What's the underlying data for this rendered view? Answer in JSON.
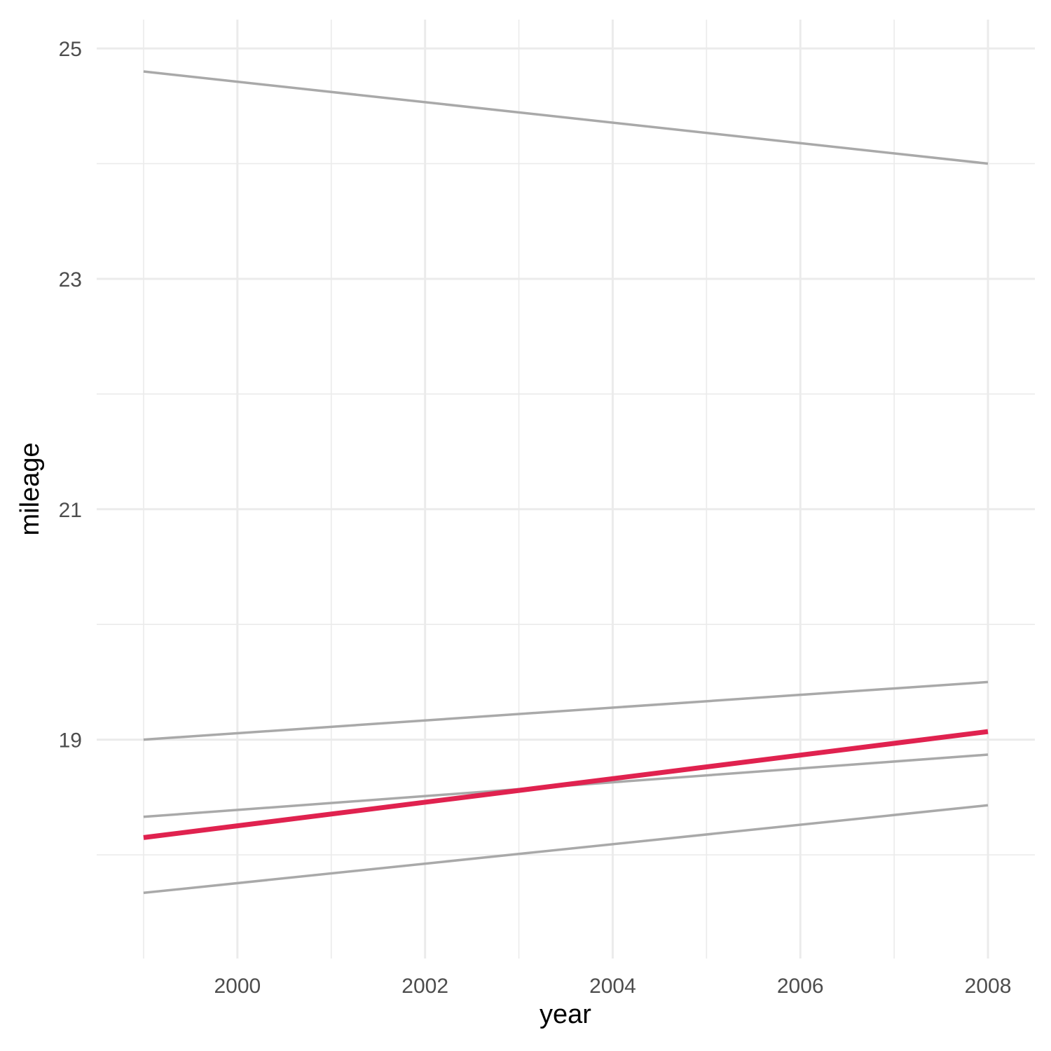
{
  "chart_data": {
    "type": "line",
    "title": "",
    "xlabel": "year",
    "ylabel": "mileage",
    "xlim": [
      1998.5,
      2008.5
    ],
    "ylim": [
      17.1,
      25.25
    ],
    "x_ticks": [
      2000,
      2002,
      2004,
      2006,
      2008
    ],
    "x_ticks_minor": [
      1999,
      2001,
      2003,
      2005,
      2007
    ],
    "y_ticks": [
      19,
      21,
      23,
      25
    ],
    "y_ticks_minor": [
      18,
      20,
      22,
      24
    ],
    "grid": true,
    "legend": "none",
    "colors": {
      "highlight": "#e0224f",
      "background_series": "#a9a9a9",
      "grid": "#ebebeb"
    },
    "series": [
      {
        "x": [
          1999,
          2008
        ],
        "y": [
          24.8,
          24.0
        ],
        "highlight": false
      },
      {
        "x": [
          1999,
          2008
        ],
        "y": [
          19.0,
          19.5
        ],
        "highlight": false
      },
      {
        "x": [
          1999,
          2008
        ],
        "y": [
          18.33,
          18.87
        ],
        "highlight": false
      },
      {
        "x": [
          1999,
          2008
        ],
        "y": [
          17.67,
          18.43
        ],
        "highlight": false
      },
      {
        "x": [
          1999,
          2008
        ],
        "y": [
          18.15,
          19.07
        ],
        "highlight": true
      }
    ]
  }
}
